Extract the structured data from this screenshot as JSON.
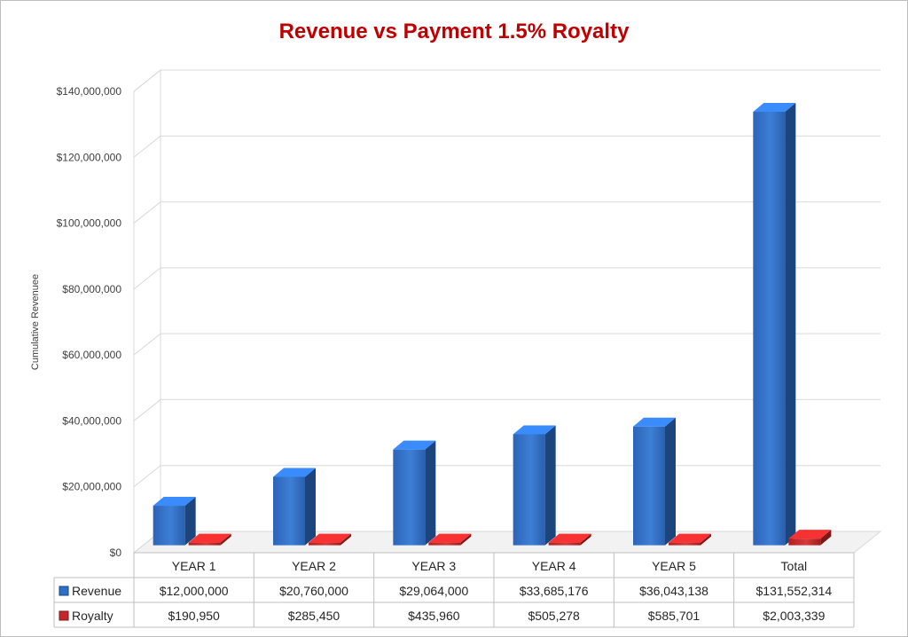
{
  "chart_data": {
    "type": "bar",
    "title": "Revenue vs Payment 1.5% Royalty",
    "ylabel": "Cumulative Revenuee",
    "xlabel": "",
    "ylim": [
      0,
      140000000
    ],
    "yticks": [
      0,
      20000000,
      40000000,
      60000000,
      80000000,
      100000000,
      120000000,
      140000000
    ],
    "ytick_labels": [
      "$0",
      "$20,000,000",
      "$40,000,000",
      "$60,000,000",
      "$80,000,000",
      "$100,000,000",
      "$120,000,000",
      "$140,000,000"
    ],
    "grid": true,
    "legend_placement": "in-table-left",
    "categories": [
      "YEAR 1",
      "YEAR 2",
      "YEAR 3",
      "YEAR 4",
      "YEAR 5",
      "Total"
    ],
    "series": [
      {
        "name": "Revenue",
        "color": "#2e6fc9",
        "values": [
          12000000,
          20760000,
          29064000,
          33685176,
          36043138,
          131552314
        ],
        "labels": [
          "$12,000,000",
          "$20,760,000",
          "$29,064,000",
          "$33,685,176",
          "$36,043,138",
          "$131,552,314"
        ]
      },
      {
        "name": "Royalty",
        "color": "#c62828",
        "values": [
          190950,
          285450,
          435960,
          505278,
          585701,
          2003339
        ],
        "labels": [
          "$190,950",
          "$285,450",
          "$435,960",
          "$505,278",
          "$585,701",
          "$2,003,339"
        ]
      }
    ],
    "title_color": "#c00000"
  }
}
